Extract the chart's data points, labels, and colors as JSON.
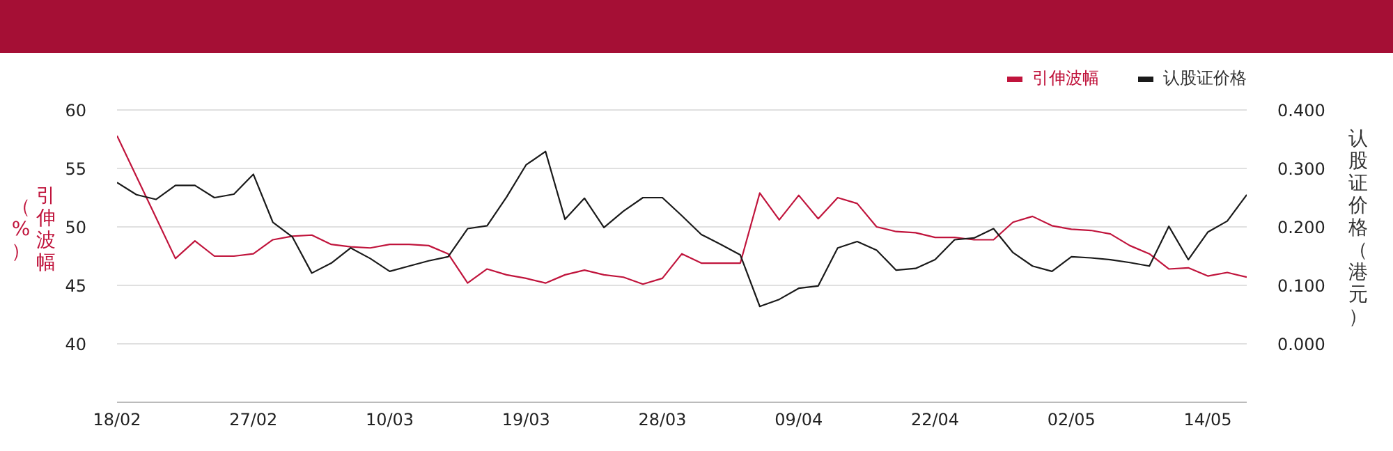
{
  "chart_data": {
    "type": "line",
    "ylabel": "引伸波幅（%）",
    "y2label": "认股证价格（港元）",
    "categories": [
      "18/02",
      null,
      null,
      null,
      null,
      null,
      null,
      "27/02",
      null,
      null,
      null,
      null,
      null,
      null,
      "10/03",
      null,
      null,
      null,
      null,
      null,
      null,
      "19/03",
      null,
      null,
      null,
      null,
      null,
      null,
      "28/03",
      null,
      null,
      null,
      null,
      null,
      null,
      "09/04",
      null,
      null,
      null,
      null,
      null,
      null,
      "22/04",
      null,
      null,
      null,
      null,
      null,
      null,
      "02/05",
      null,
      null,
      null,
      null,
      null,
      null,
      "14/05",
      null,
      null
    ],
    "series": [
      {
        "name": "引伸波幅",
        "color": "#c0143c",
        "values": [
          57.8,
          54.3,
          50.8,
          47.3,
          48.8,
          47.5,
          47.5,
          47.7,
          48.9,
          49.2,
          49.3,
          48.5,
          48.3,
          48.2,
          48.5,
          48.5,
          48.4,
          47.7,
          45.2,
          46.4,
          45.9,
          45.6,
          45.2,
          45.9,
          46.3,
          45.9,
          45.7,
          45.1,
          45.6,
          47.7,
          46.9,
          46.9,
          46.9,
          52.9,
          50.6,
          52.7,
          50.7,
          52.5,
          52.0,
          50.0,
          49.6,
          49.5,
          49.1,
          49.1,
          48.9,
          48.9,
          50.4,
          50.9,
          50.1,
          49.8,
          49.7,
          49.4,
          48.4,
          47.7,
          46.4,
          46.5,
          45.8,
          46.1,
          45.7
        ]
      },
      {
        "name": "认股证价格",
        "color": "#1a1a1a",
        "axis": "y2",
        "values": [
          0.276,
          0.255,
          0.247,
          0.271,
          0.271,
          0.25,
          0.256,
          0.29,
          0.208,
          0.183,
          0.121,
          0.138,
          0.164,
          0.146,
          0.124,
          0.133,
          0.142,
          0.149,
          0.197,
          0.202,
          0.251,
          0.306,
          0.329,
          0.213,
          0.249,
          0.199,
          0.227,
          0.25,
          0.25,
          0.219,
          0.187,
          0.17,
          0.152,
          0.064,
          0.076,
          0.095,
          0.099,
          0.164,
          0.175,
          0.16,
          0.126,
          0.129,
          0.144,
          0.178,
          0.181,
          0.197,
          0.156,
          0.133,
          0.124,
          0.149,
          0.147,
          0.144,
          0.139,
          0.133,
          0.201,
          0.144,
          0.191,
          0.21,
          0.255
        ]
      }
    ],
    "ylim": [
      35,
      60
    ],
    "yticks": [
      40,
      45,
      50,
      55,
      60
    ],
    "y2lim": [
      -0.1,
      0.4
    ],
    "y2ticks": [
      {
        "value": 0,
        "label": "0.000"
      },
      {
        "value": 0.1,
        "label": "0.100"
      },
      {
        "value": 0.2,
        "label": "0.200"
      },
      {
        "value": 0.3,
        "label": "0.300"
      },
      {
        "value": 0.4,
        "label": "0.400"
      }
    ],
    "grid": "y",
    "legend": "top right",
    "marker": "none",
    "line_style": "solid"
  }
}
